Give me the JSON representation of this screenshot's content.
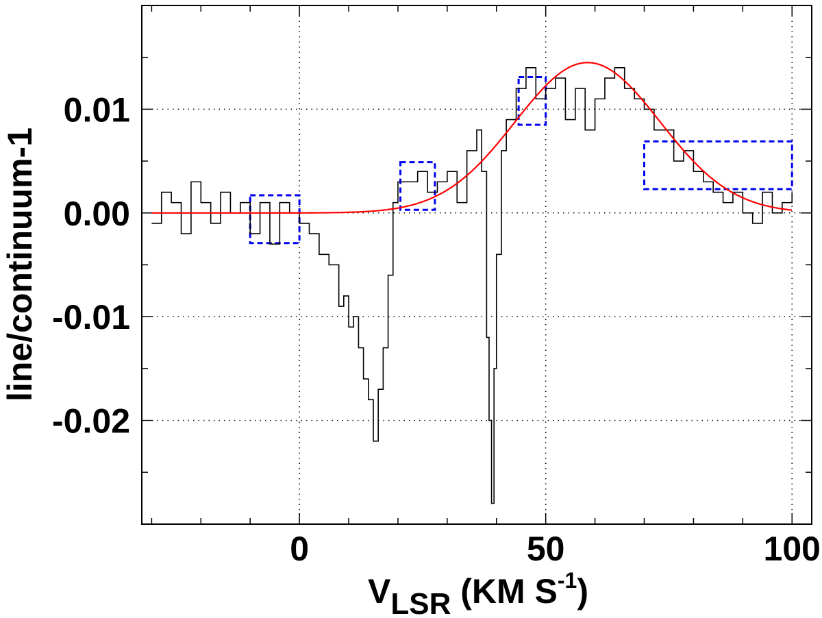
{
  "chart_data": {
    "type": "line",
    "xlabel": {
      "main": "V",
      "sub": "LSR",
      "rest": " (KM S",
      "sup": "-1",
      "close": ")"
    },
    "ylabel": "line/continuum-1",
    "xlim": [
      -32,
      104
    ],
    "ylim": [
      -0.03,
      0.02
    ],
    "x_ticks": [
      0,
      50,
      100
    ],
    "x_tick_labels": [
      "0",
      "50",
      "100"
    ],
    "y_ticks": [
      -0.02,
      -0.01,
      0.0,
      0.01
    ],
    "y_tick_labels": [
      "-0.02",
      "-0.01",
      "0.00",
      "0.01"
    ],
    "x_minor_step": 10,
    "y_minor_step": 0.005,
    "grid": true,
    "series": [
      {
        "role": "spectrum",
        "color": "#000000",
        "style": "steps",
        "x": [
          -30,
          -28,
          -26,
          -24,
          -22,
          -20,
          -18,
          -16,
          -14,
          -12,
          -10,
          -8,
          -6,
          -4,
          -2,
          0,
          2,
          4,
          6,
          8,
          9,
          10,
          11,
          12,
          13,
          14,
          15,
          16,
          17,
          18,
          19,
          20,
          22,
          24,
          26,
          28,
          30,
          32,
          34,
          36,
          37,
          38,
          38.5,
          39,
          39.5,
          40,
          41,
          42,
          44,
          46,
          48,
          50,
          52,
          54,
          56,
          58,
          60,
          62,
          64,
          66,
          68,
          70,
          72,
          74,
          76,
          78,
          80,
          82,
          84,
          86,
          88,
          90,
          92,
          94,
          96,
          98,
          100
        ],
        "y": [
          -0.001,
          0.002,
          0.001,
          -0.002,
          0.003,
          0.001,
          -0.001,
          0.002,
          0.0,
          0.001,
          -0.002,
          0.001,
          -0.003,
          0.001,
          0.0,
          -0.001,
          -0.002,
          -0.004,
          -0.005,
          -0.009,
          -0.008,
          -0.011,
          -0.01,
          -0.013,
          -0.016,
          -0.018,
          -0.022,
          -0.017,
          -0.013,
          -0.006,
          0.001,
          0.003,
          0.003,
          0.004,
          0.002,
          0.003,
          0.004,
          0.001,
          0.006,
          0.008,
          0.004,
          -0.012,
          -0.02,
          -0.028,
          -0.015,
          -0.004,
          0.006,
          0.009,
          0.012,
          0.014,
          0.011,
          0.012,
          0.013,
          0.009,
          0.012,
          0.008,
          0.011,
          0.013,
          0.014,
          0.012,
          0.011,
          0.01,
          0.008,
          0.008,
          0.005,
          0.006,
          0.004,
          0.003,
          0.002,
          0.001,
          0.002,
          0.0,
          -0.001,
          0.002,
          0.0,
          0.001,
          0.002
        ]
      },
      {
        "role": "gaussian-fit",
        "color": "#ff0000",
        "style": "line",
        "amplitude": 0.0145,
        "center": 58.5,
        "sigma": 14.7,
        "x_range": [
          -30,
          100
        ]
      }
    ],
    "boxes": [
      {
        "x0": -10,
        "x1": 0,
        "y0": -0.0029,
        "y1": 0.0017,
        "color": "#0000ee"
      },
      {
        "x0": 20.5,
        "x1": 27.5,
        "y0": 0.0003,
        "y1": 0.0049,
        "color": "#0000ee"
      },
      {
        "x0": 44.5,
        "x1": 50,
        "y0": 0.0085,
        "y1": 0.0131,
        "color": "#0000ee"
      },
      {
        "x0": 70,
        "x1": 100,
        "y0": 0.0023,
        "y1": 0.0069,
        "color": "#0000ee"
      }
    ]
  }
}
